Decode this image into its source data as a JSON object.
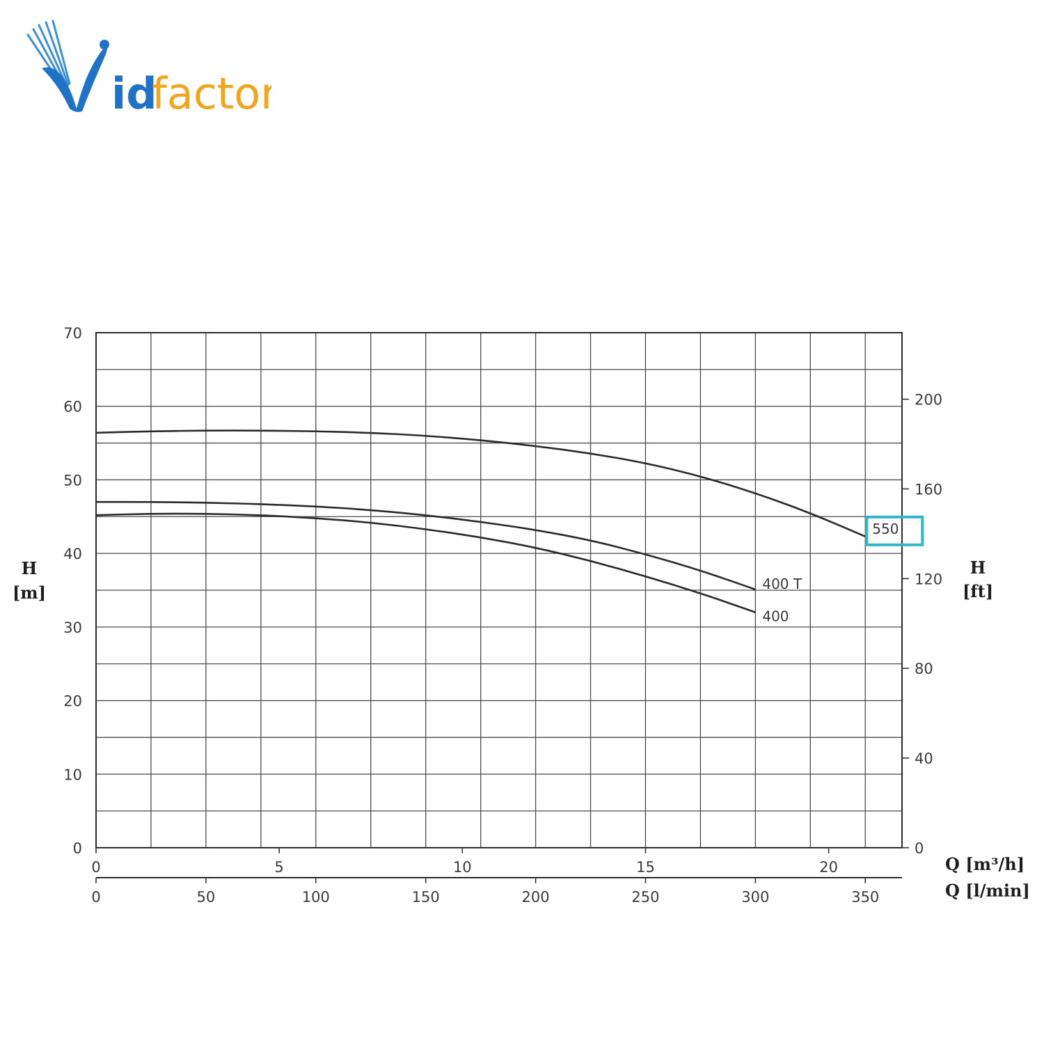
{
  "logo": {
    "text_prefix": "V",
    "text_rest": "idfactor",
    "color_blue": "#1e73c8",
    "color_orange": "#f2a51b"
  },
  "colors": {
    "grid": "#4a4a4a",
    "curve": "#2a2a2a",
    "highlight": "#2fb7c9"
  },
  "chart_data": {
    "type": "line",
    "xlabel_top": "Q [m³/h]",
    "xlabel_bottom": "Q [l/min]",
    "ylabel_left": {
      "line1": "H",
      "line2": "[m]"
    },
    "ylabel_right": {
      "line1": "H",
      "line2": "[ft]"
    },
    "x_unit": "l/min",
    "xlim": [
      0,
      366.7
    ],
    "ylim": [
      0,
      70
    ],
    "x_ticks_lmin": [
      0,
      50,
      100,
      150,
      200,
      250,
      300,
      350
    ],
    "x_ticks_m3h": [
      0,
      5,
      10,
      15,
      20
    ],
    "y_ticks_m": [
      0,
      10,
      20,
      30,
      40,
      50,
      60,
      70
    ],
    "y_ticks_ft": [
      0,
      40,
      80,
      120,
      160,
      200
    ],
    "grid": true,
    "series": [
      {
        "name": "550",
        "highlighted": true,
        "x": [
          0,
          25,
          50,
          75,
          100,
          125,
          150,
          175,
          200,
          225,
          250,
          275,
          300,
          325,
          350
        ],
        "y": [
          56.4,
          56.6,
          56.7,
          56.7,
          56.6,
          56.4,
          56.0,
          55.4,
          54.6,
          53.6,
          52.3,
          50.5,
          48.2,
          45.5,
          42.3
        ]
      },
      {
        "name": "400 T",
        "highlighted": false,
        "x": [
          0,
          25,
          50,
          75,
          100,
          125,
          150,
          175,
          200,
          225,
          250,
          275,
          300
        ],
        "y": [
          47.0,
          47.0,
          46.9,
          46.7,
          46.4,
          45.9,
          45.2,
          44.3,
          43.2,
          41.8,
          39.9,
          37.7,
          35.1
        ]
      },
      {
        "name": "400",
        "highlighted": false,
        "x": [
          0,
          25,
          50,
          75,
          100,
          125,
          150,
          175,
          200,
          225,
          250,
          275,
          300
        ],
        "y": [
          45.2,
          45.4,
          45.4,
          45.2,
          44.8,
          44.2,
          43.3,
          42.2,
          40.8,
          39.0,
          36.9,
          34.6,
          32.0
        ]
      }
    ]
  }
}
